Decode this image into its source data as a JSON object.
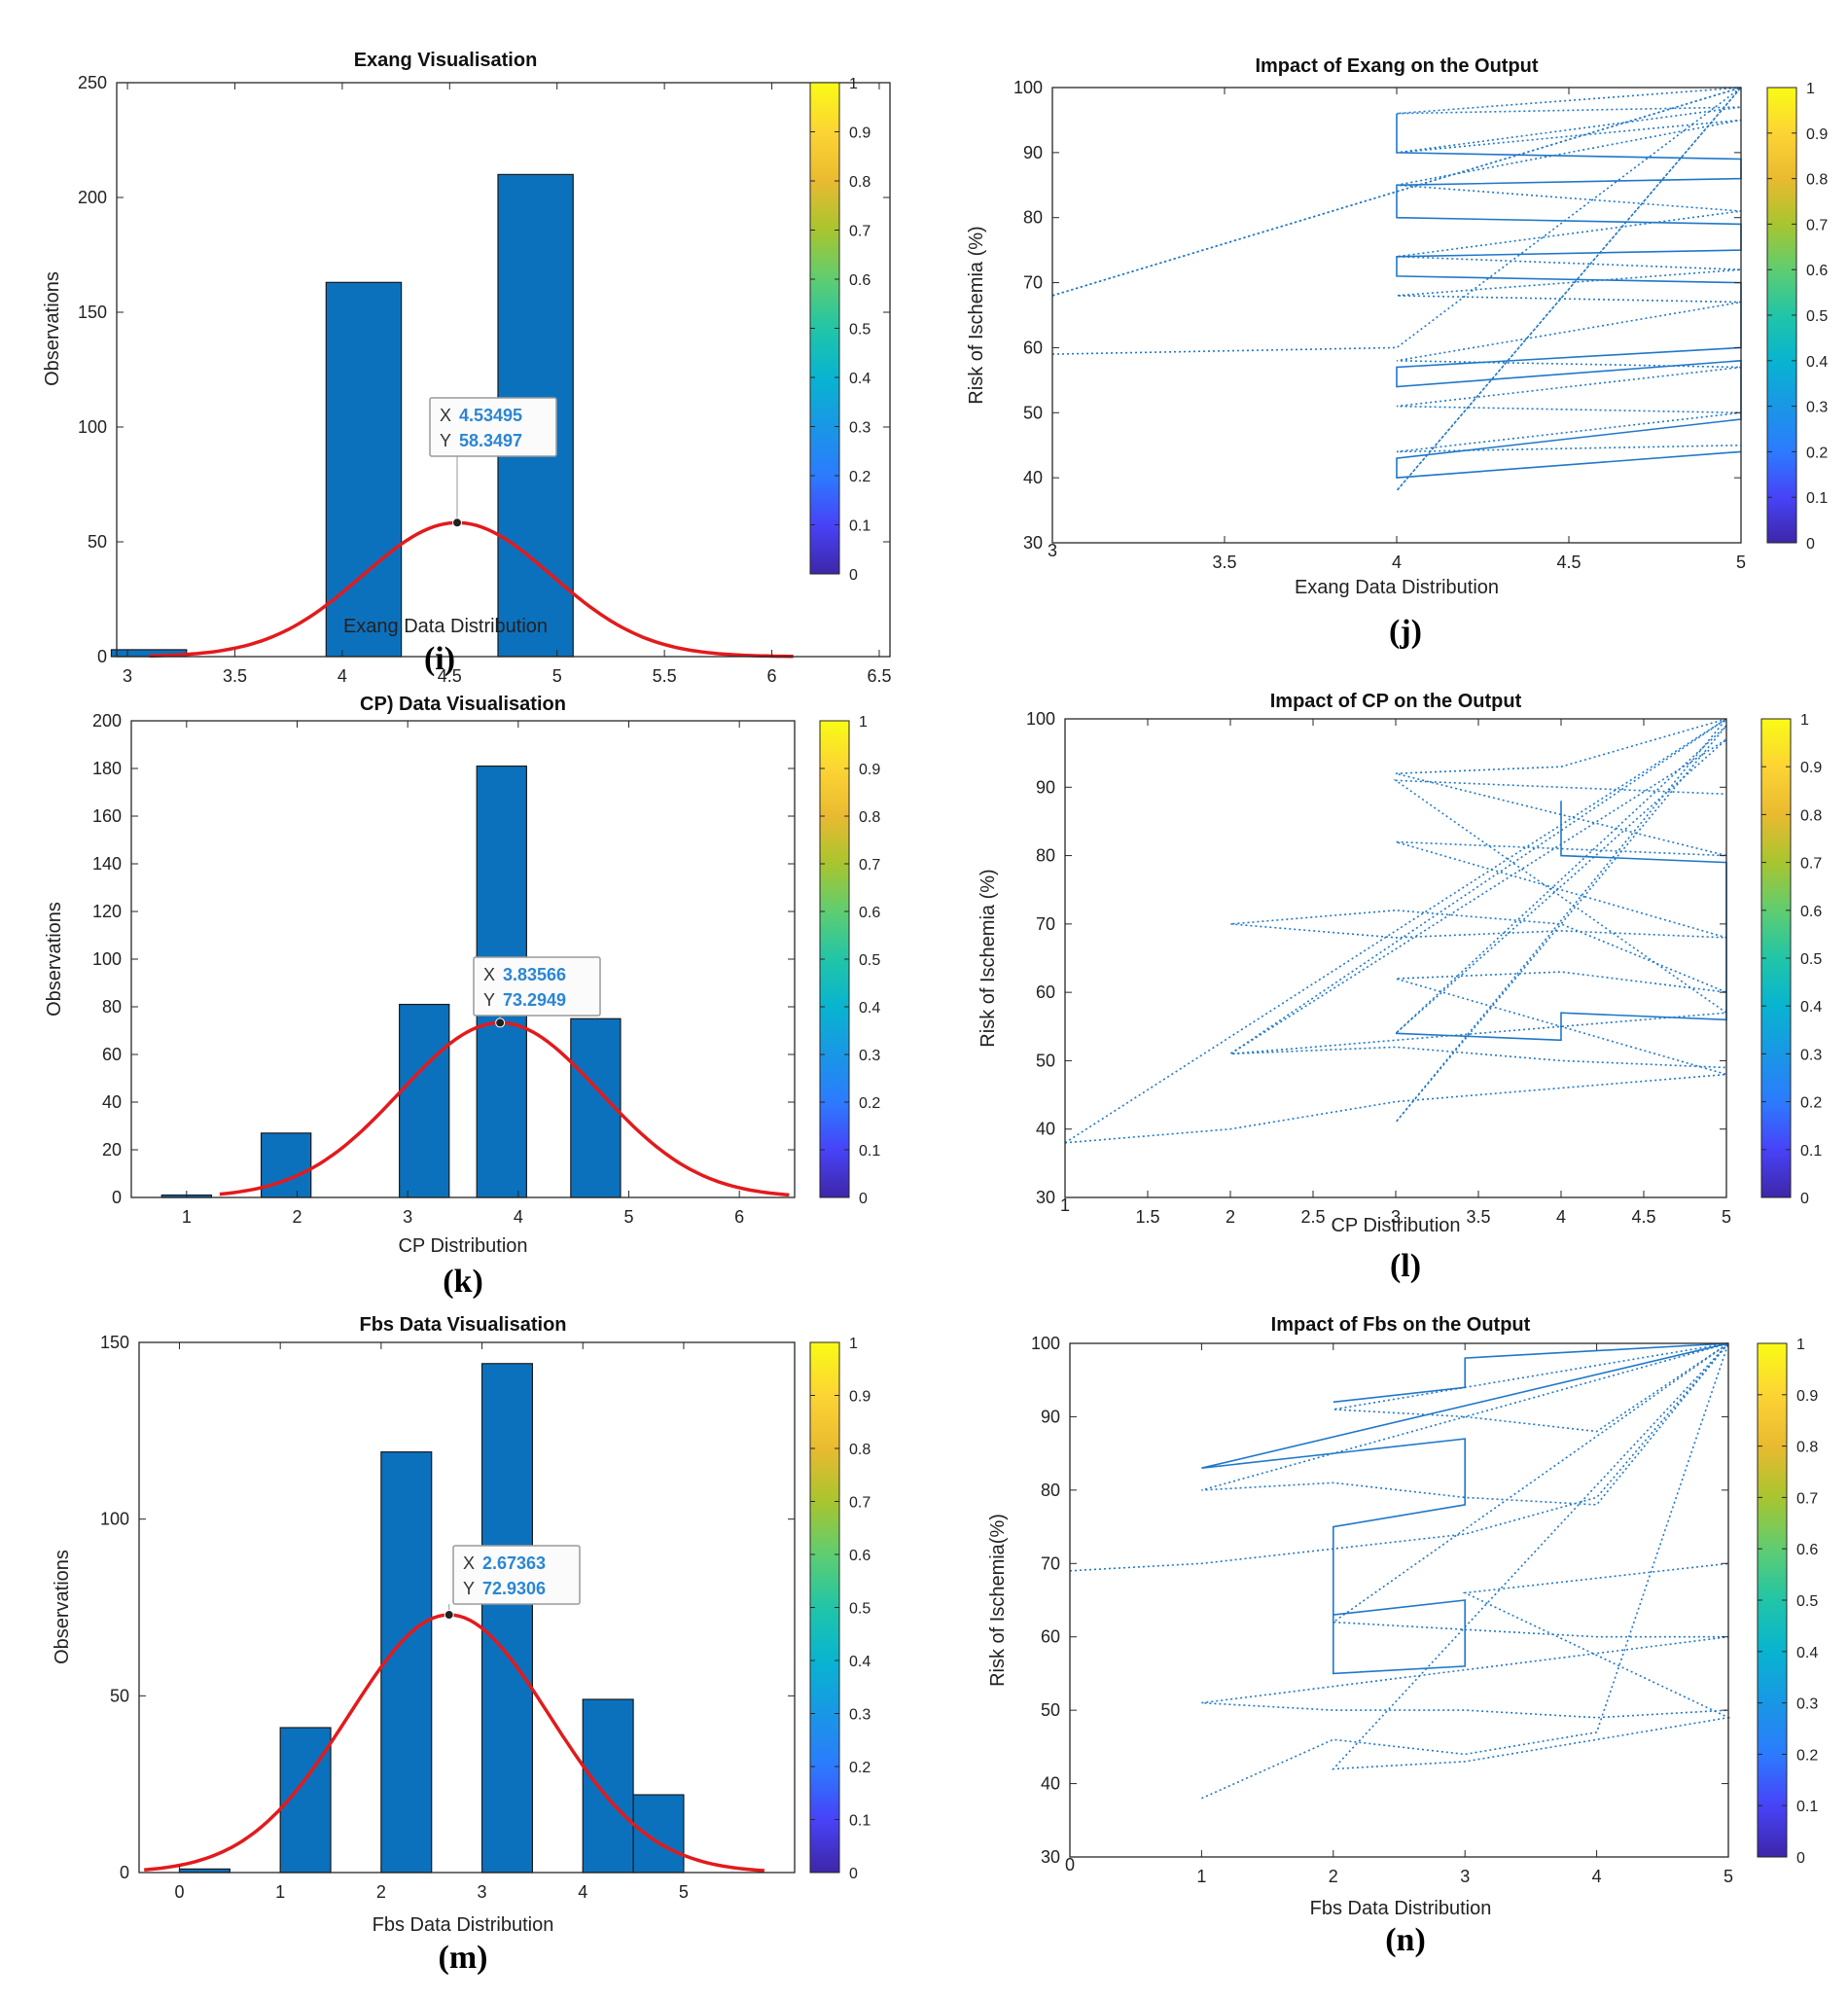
{
  "colors": {
    "bar": "#0c71bd",
    "fit": "#e31a1c",
    "line": "#1f77c9",
    "axis": "#262626"
  },
  "colorbar": {
    "ticks": [
      "0",
      "0.1",
      "0.2",
      "0.3",
      "0.4",
      "0.5",
      "0.6",
      "0.7",
      "0.8",
      "0.9",
      "1"
    ],
    "colors": [
      "#3e26a8",
      "#4743f8",
      "#2c7bfe",
      "#1997e5",
      "#08b4d0",
      "#21c5a7",
      "#5fcd70",
      "#a8c52f",
      "#e9ba30",
      "#fcd434",
      "#f9fb15"
    ]
  },
  "chart_data": [
    {
      "panel": "(i)",
      "type": "bar",
      "title": "Exang Visualisation",
      "xlabel": "Exang Data Distribution",
      "ylabel": "Observations",
      "xlim": [
        2.95,
        6.55
      ],
      "ylim": [
        0,
        250
      ],
      "xticks": [
        "3",
        "3.5",
        "4",
        "4.5",
        "5",
        "5.5",
        "6",
        "6.5"
      ],
      "yticks": [
        "0",
        "50",
        "100",
        "150",
        "200",
        "250"
      ],
      "bars": [
        {
          "x": 3.1,
          "value": 3
        },
        {
          "x": 4.1,
          "value": 163
        },
        {
          "x": 4.9,
          "value": 210
        }
      ],
      "fit": {
        "type": "normal",
        "mean": 4.53495,
        "peak": 58.3497,
        "sigma": 0.44,
        "range": [
          3.1,
          6.1
        ]
      },
      "datatip": {
        "x_label": "X",
        "x_value": "4.53495",
        "y_label": "Y",
        "y_value": "58.3497"
      }
    },
    {
      "panel": "(j)",
      "type": "line",
      "title": "Impact of Exang on the Output",
      "xlabel": "Exang Data Distribution",
      "ylabel": "Risk of Ischemia (%)",
      "xlim": [
        3,
        5
      ],
      "ylim": [
        30,
        100
      ],
      "xticks": [
        "3",
        "3.5",
        "4",
        "4.5",
        "5"
      ],
      "yticks": [
        "30",
        "40",
        "50",
        "60",
        "70",
        "80",
        "90",
        "100"
      ],
      "series": [
        {
          "style": "dotted",
          "x": [
            3,
            4,
            5,
            4,
            5,
            4,
            5,
            4,
            5,
            4,
            5,
            4,
            5,
            4,
            5,
            4,
            5,
            4,
            5
          ],
          "y": [
            68,
            84,
            100,
            96,
            97,
            90,
            95,
            85,
            81,
            74,
            72,
            68,
            67,
            58,
            57,
            51,
            50,
            44,
            45
          ]
        },
        {
          "style": "solid",
          "x": [
            4,
            4,
            5,
            5,
            4,
            4,
            5,
            5,
            4,
            4,
            5,
            5,
            4,
            4,
            5,
            5,
            4,
            4,
            5
          ],
          "y": [
            96,
            90,
            89,
            86,
            85,
            80,
            79,
            75,
            74,
            71,
            70,
            60,
            57,
            54,
            58,
            49,
            43,
            40,
            44
          ]
        },
        {
          "style": "dotted",
          "x": [
            3,
            4,
            5,
            4,
            5,
            3
          ],
          "y": [
            59,
            60,
            100,
            38,
            100,
            68
          ]
        }
      ]
    },
    {
      "panel": "(k)",
      "type": "bar",
      "title": "CP) Data Visualisation",
      "xlabel": "CP Distribution",
      "ylabel": "Observations",
      "xlim": [
        0.5,
        6.5
      ],
      "ylim": [
        0,
        200
      ],
      "xticks": [
        "1",
        "2",
        "3",
        "4",
        "5",
        "6"
      ],
      "yticks": [
        "0",
        "20",
        "40",
        "60",
        "80",
        "100",
        "120",
        "140",
        "160",
        "180",
        "200"
      ],
      "bars": [
        {
          "x": 1.0,
          "value": 1
        },
        {
          "x": 1.9,
          "value": 27
        },
        {
          "x": 3.15,
          "value": 81
        },
        {
          "x": 3.85,
          "value": 181
        },
        {
          "x": 4.7,
          "value": 75
        }
      ],
      "fit": {
        "type": "normal",
        "mean": 3.83566,
        "peak": 73.2949,
        "sigma": 0.9,
        "range": [
          1.3,
          6.45
        ]
      },
      "datatip": {
        "x_label": "X",
        "x_value": "3.83566",
        "y_label": "Y",
        "y_value": "73.2949"
      }
    },
    {
      "panel": "(l)",
      "type": "line",
      "title": "Impact of CP on the Output",
      "xlabel": "CP Distribution",
      "ylabel": "Risk of Ischemia (%)",
      "xlim": [
        1,
        5
      ],
      "ylim": [
        30,
        100
      ],
      "xticks": [
        "1",
        "1.5",
        "2",
        "2.5",
        "3",
        "3.5",
        "4",
        "4.5",
        "5"
      ],
      "yticks": [
        "30",
        "40",
        "50",
        "60",
        "70",
        "80",
        "90",
        "100"
      ],
      "series": [
        {
          "style": "dotted",
          "x": [
            1,
            2,
            3,
            4,
            5,
            4,
            3,
            4,
            5,
            4,
            3,
            2,
            3,
            4,
            5,
            3,
            4,
            5,
            3,
            4,
            5,
            2,
            3,
            4,
            5
          ],
          "y": [
            38,
            40,
            44,
            46,
            48,
            55,
            62,
            63,
            60,
            70,
            72,
            70,
            68,
            69,
            68,
            82,
            81,
            80,
            92,
            93,
            100,
            51,
            52,
            50,
            49
          ]
        },
        {
          "style": "dotted",
          "x": [
            1,
            5,
            3,
            5,
            3,
            5,
            2,
            5,
            3,
            5
          ],
          "y": [
            38,
            100,
            41,
            99,
            54,
            97,
            51,
            57,
            91,
            89
          ]
        },
        {
          "style": "solid",
          "x": [
            4,
            4,
            5,
            5,
            4,
            4,
            3,
            4
          ],
          "y": [
            88,
            80,
            79,
            56,
            57,
            53,
            54,
            53
          ]
        }
      ]
    },
    {
      "panel": "(m)",
      "type": "bar",
      "title": "Fbs Data Visualisation",
      "xlabel": "Fbs Data Distribution",
      "ylabel": "Observations",
      "xlim": [
        -0.4,
        6.1
      ],
      "ylim": [
        0,
        150
      ],
      "xticks": [
        "0",
        "1",
        "2",
        "3",
        "4",
        "5"
      ],
      "yticks": [
        "0",
        "50",
        "100",
        "150"
      ],
      "bars": [
        {
          "x": 0.25,
          "value": 1
        },
        {
          "x": 1.25,
          "value": 41
        },
        {
          "x": 2.25,
          "value": 119
        },
        {
          "x": 3.25,
          "value": 144
        },
        {
          "x": 4.25,
          "value": 49
        },
        {
          "x": 4.75,
          "value": 22
        }
      ],
      "fit": {
        "type": "normal",
        "mean": 2.67363,
        "peak": 72.9306,
        "sigma": 1.0,
        "range": [
          -0.35,
          5.8
        ]
      },
      "datatip": {
        "x_label": "X",
        "x_value": "2.67363",
        "y_label": "Y",
        "y_value": "72.9306"
      }
    },
    {
      "panel": "(n)",
      "type": "line",
      "title": "Impact of Fbs on the Output",
      "xlabel": "Fbs Data Distribution",
      "ylabel": "Risk of Ischemia(%)",
      "xlim": [
        0,
        5
      ],
      "ylim": [
        30,
        100
      ],
      "xticks": [
        "0",
        "1",
        "2",
        "3",
        "4",
        "5"
      ],
      "yticks": [
        "30",
        "40",
        "50",
        "60",
        "70",
        "80",
        "90",
        "100"
      ],
      "series": [
        {
          "style": "dotted",
          "x": [
            0,
            1,
            2,
            3,
            4,
            5,
            2,
            3,
            4,
            5,
            1,
            2,
            3,
            4,
            5,
            2,
            3,
            4,
            5,
            1,
            2,
            3,
            4,
            5
          ],
          "y": [
            69,
            70,
            72,
            74,
            79,
            100,
            91,
            90,
            88,
            100,
            80,
            81,
            79,
            78,
            100,
            62,
            61,
            60,
            60,
            51,
            50,
            50,
            49,
            50
          ]
        },
        {
          "style": "dotted",
          "x": [
            1,
            2,
            3,
            4,
            5,
            2,
            3,
            5,
            3,
            5
          ],
          "y": [
            38,
            46,
            44,
            47,
            100,
            42,
            43,
            49,
            66,
            70
          ]
        },
        {
          "style": "solid",
          "x": [
            2,
            3,
            3,
            5,
            1,
            3,
            3,
            2,
            2,
            3,
            3,
            2
          ],
          "y": [
            92,
            94,
            98,
            100,
            83,
            87,
            78,
            75,
            55,
            56,
            65,
            63
          ]
        }
      ]
    }
  ]
}
